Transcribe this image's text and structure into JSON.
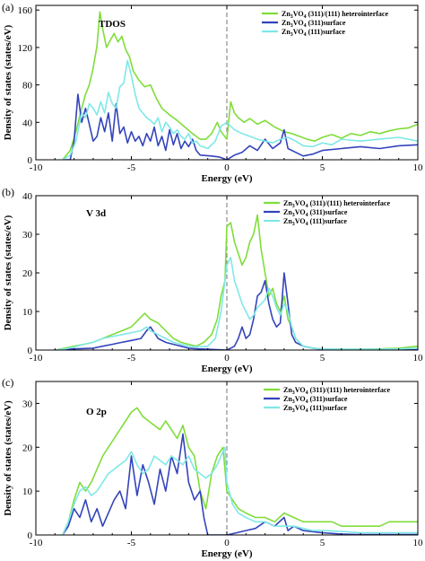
{
  "chart_data": [
    {
      "type": "line",
      "panel_letter": "(a)",
      "title": "TDOS",
      "xlabel": "Energy (eV)",
      "ylabel": "Density of states (states/eV)",
      "xlim": [
        -10,
        10
      ],
      "ylim": [
        0,
        165
      ],
      "xticks": [
        -10,
        -5,
        0,
        5,
        10
      ],
      "yticks": [
        0,
        40,
        80,
        120,
        160
      ],
      "fermi_level": 0,
      "legend_position": "top-right",
      "series": [
        {
          "name": "Zn3VO4 (311)/(111) heterointerface",
          "color": "#7fdd3a",
          "x": [
            -8.6,
            -8.2,
            -7.9,
            -7.6,
            -7.4,
            -7.2,
            -7.0,
            -6.8,
            -6.65,
            -6.5,
            -6.3,
            -6.1,
            -5.9,
            -5.7,
            -5.5,
            -5.3,
            -5.1,
            -4.9,
            -4.6,
            -4.3,
            -4.0,
            -3.7,
            -3.4,
            -3.0,
            -2.6,
            -2.2,
            -1.8,
            -1.4,
            -1.1,
            -0.8,
            -0.5,
            -0.3,
            0,
            0.2,
            0.4,
            0.6,
            0.9,
            1.2,
            1.6,
            2.0,
            2.5,
            3.0,
            3.4,
            3.8,
            4.2,
            4.6,
            5.0,
            5.5,
            6.0,
            6.5,
            7.0,
            7.5,
            8.0,
            8.5,
            9.0,
            9.5,
            10
          ],
          "y": [
            0,
            10,
            30,
            55,
            70,
            80,
            98,
            122,
            158,
            140,
            120,
            128,
            135,
            126,
            132,
            118,
            110,
            95,
            85,
            78,
            80,
            66,
            55,
            48,
            42,
            35,
            28,
            22,
            22,
            28,
            40,
            30,
            22,
            62,
            50,
            45,
            40,
            44,
            38,
            42,
            35,
            30,
            28,
            25,
            22,
            20,
            24,
            27,
            23,
            28,
            26,
            30,
            28,
            31,
            33,
            34,
            38
          ]
        },
        {
          "name": "Zn3VO4 (311)surface",
          "color": "#3344bb",
          "x": [
            -8.6,
            -8.2,
            -8.0,
            -7.8,
            -7.6,
            -7.4,
            -7.2,
            -7.0,
            -6.8,
            -6.6,
            -6.4,
            -6.2,
            -6.0,
            -5.8,
            -5.6,
            -5.4,
            -5.2,
            -5.0,
            -4.8,
            -4.6,
            -4.4,
            -4.2,
            -4.0,
            -3.8,
            -3.6,
            -3.4,
            -3.2,
            -3.0,
            -2.8,
            -2.6,
            -2.4,
            -2.2,
            -2.0,
            -1.8,
            -1.6,
            -1.4,
            -0.8,
            -0.4,
            0,
            0.4,
            0.8,
            1.2,
            1.6,
            2.0,
            2.4,
            2.8,
            3.0,
            3.2,
            3.6,
            4.0,
            4.5,
            5.0,
            6.0,
            7.0,
            8.0,
            9.0,
            10
          ],
          "y": [
            0,
            0,
            20,
            70,
            40,
            55,
            38,
            20,
            25,
            45,
            30,
            50,
            20,
            60,
            28,
            35,
            18,
            30,
            20,
            25,
            15,
            28,
            20,
            35,
            15,
            25,
            10,
            32,
            16,
            28,
            12,
            20,
            14,
            22,
            10,
            5,
            4,
            3,
            0,
            5,
            8,
            15,
            10,
            22,
            12,
            18,
            32,
            12,
            8,
            4,
            6,
            10,
            12,
            14,
            12,
            15,
            16
          ]
        },
        {
          "name": "Zn3VO4 (111)surface",
          "color": "#7fe8e8",
          "x": [
            -8.6,
            -8.2,
            -7.9,
            -7.6,
            -7.4,
            -7.2,
            -7.0,
            -6.8,
            -6.6,
            -6.4,
            -6.2,
            -6.0,
            -5.8,
            -5.6,
            -5.4,
            -5.2,
            -5.0,
            -4.8,
            -4.6,
            -4.4,
            -4.2,
            -4.0,
            -3.8,
            -3.6,
            -3.4,
            -3.2,
            -3.0,
            -2.8,
            -2.6,
            -2.4,
            -2.2,
            -2.0,
            -1.8,
            -1.6,
            -1.4,
            -1.0,
            -0.6,
            -0.3,
            0,
            0.4,
            0.8,
            1.2,
            1.6,
            2.0,
            2.4,
            2.8,
            3.2,
            3.6,
            4.0,
            4.5,
            5.0,
            5.5,
            6.0,
            7.0,
            8.0,
            9.0,
            10
          ],
          "y": [
            0,
            5,
            20,
            50,
            45,
            60,
            55,
            48,
            62,
            50,
            72,
            60,
            55,
            78,
            82,
            106,
            90,
            70,
            55,
            50,
            45,
            42,
            38,
            45,
            30,
            40,
            35,
            28,
            32,
            25,
            22,
            28,
            18,
            20,
            15,
            12,
            20,
            36,
            40,
            32,
            28,
            25,
            22,
            20,
            18,
            22,
            24,
            20,
            15,
            14,
            18,
            16,
            22,
            20,
            22,
            24,
            20
          ]
        }
      ]
    },
    {
      "type": "line",
      "panel_letter": "(b)",
      "title": "V 3d",
      "xlabel": "Energy (eV)",
      "ylabel": "Density of states (states/eV)",
      "xlim": [
        -10,
        10
      ],
      "ylim": [
        0,
        40
      ],
      "xticks": [
        -10,
        -5,
        0,
        5,
        10
      ],
      "yticks": [
        0,
        10,
        20,
        30,
        40
      ],
      "fermi_level": 0,
      "legend_position": "top-right",
      "series": [
        {
          "name": "Zn3VO4 (311)/(111) heterointerface",
          "color": "#7fdd3a",
          "x": [
            -9,
            -8.5,
            -8,
            -7.5,
            -7,
            -6.5,
            -6,
            -5.5,
            -5,
            -4.6,
            -4.3,
            -4.0,
            -3.6,
            -3.2,
            -2.8,
            -2.4,
            -2.0,
            -1.6,
            -1.2,
            -0.8,
            -0.5,
            -0.3,
            -0.1,
            0,
            0.2,
            0.4,
            0.6,
            0.8,
            1.0,
            1.2,
            1.4,
            1.6,
            1.8,
            2.0,
            2.2,
            2.4,
            2.6,
            2.8,
            3.0,
            3.2,
            3.4,
            3.6,
            3.8,
            4.0,
            4.5,
            5.0,
            6.0,
            7.0,
            8.0,
            9.0,
            10
          ],
          "y": [
            0,
            0.5,
            1,
            1.5,
            2,
            3,
            4,
            5,
            6,
            8,
            9.5,
            8,
            7,
            5,
            3,
            2,
            1.5,
            1,
            2,
            4,
            8,
            14,
            18,
            32,
            33,
            28,
            25,
            22,
            24,
            28,
            30,
            35,
            26,
            20,
            14,
            16,
            12,
            10,
            14,
            8,
            6,
            3,
            2,
            1,
            0.5,
            0.3,
            0.2,
            0.2,
            0.3,
            0.5,
            1
          ]
        },
        {
          "name": "Zn3VO4 (311)surface",
          "color": "#3344bb",
          "x": [
            -9,
            -8,
            -7,
            -6.5,
            -6,
            -5.5,
            -5,
            -4.5,
            -4.2,
            -4.0,
            -3.6,
            -3.2,
            -2.8,
            -2.4,
            -2.0,
            -1.5,
            -1,
            -0.5,
            0,
            0.2,
            0.4,
            0.6,
            0.8,
            1.0,
            1.2,
            1.4,
            1.6,
            1.8,
            2.0,
            2.2,
            2.4,
            2.6,
            2.8,
            3.0,
            3.2,
            3.4,
            3.6,
            4.0,
            4.5,
            5,
            6,
            7,
            8,
            9,
            10
          ],
          "y": [
            0,
            0.3,
            0.5,
            1,
            1.5,
            2,
            2.5,
            3,
            5,
            6,
            3,
            2,
            1.5,
            1,
            0.5,
            0.3,
            0.2,
            0.1,
            0,
            0.5,
            1,
            3,
            6,
            3,
            4,
            8,
            14,
            15,
            18,
            12,
            8,
            6,
            7,
            20,
            12,
            4,
            2,
            1,
            0.5,
            0.2,
            0.1,
            0.1,
            0.1,
            0.1,
            0.1
          ]
        },
        {
          "name": "Zn3VO4 (111)surface",
          "color": "#7fe8e8",
          "x": [
            -9,
            -8.5,
            -8,
            -7.5,
            -7,
            -6.5,
            -6,
            -5.5,
            -5,
            -4.5,
            -4.2,
            -4.0,
            -3.6,
            -3.2,
            -2.8,
            -2.4,
            -2.0,
            -1.5,
            -1,
            -0.6,
            -0.3,
            0,
            0.2,
            0.4,
            0.6,
            0.8,
            1.0,
            1.2,
            1.4,
            1.6,
            1.8,
            2.0,
            2.2,
            2.4,
            2.6,
            2.8,
            3.0,
            3.2,
            3.4,
            3.6,
            3.8,
            4.0,
            4.5,
            5,
            6,
            7,
            8,
            9,
            10
          ],
          "y": [
            0,
            0.3,
            0.8,
            1.5,
            2,
            3,
            3.5,
            4,
            4.5,
            5,
            6,
            5,
            4,
            3,
            2,
            1.5,
            1,
            0.8,
            1,
            3,
            10,
            22,
            24,
            18,
            15,
            12,
            10,
            8,
            9,
            11,
            12,
            13,
            16,
            14,
            11,
            9,
            12,
            10,
            6,
            3,
            2,
            1,
            0.5,
            0.3,
            0.2,
            0.2,
            0.2,
            0.3,
            0.5
          ]
        }
      ]
    },
    {
      "type": "line",
      "panel_letter": "(c)",
      "title": "O 2p",
      "xlabel": "Energy (eV)",
      "ylabel": "Density of states (states/eV)",
      "xlim": [
        -10,
        10
      ],
      "ylim": [
        0,
        35
      ],
      "xticks": [
        -10,
        -5,
        0,
        5,
        10
      ],
      "yticks": [
        0,
        10,
        20,
        30
      ],
      "fermi_level": 0,
      "legend_position": "top-right",
      "series": [
        {
          "name": "Zn3VO4 (311)/(111) heterointerface",
          "color": "#7fdd3a",
          "x": [
            -8.6,
            -8.3,
            -8.0,
            -7.7,
            -7.4,
            -7.1,
            -6.8,
            -6.5,
            -6.2,
            -5.9,
            -5.6,
            -5.3,
            -5.0,
            -4.7,
            -4.4,
            -4.1,
            -3.8,
            -3.5,
            -3.2,
            -2.9,
            -2.6,
            -2.3,
            -2.0,
            -1.7,
            -1.4,
            -1.1,
            -0.8,
            -0.5,
            -0.2,
            0,
            0.3,
            0.6,
            1.0,
            1.5,
            2.0,
            2.5,
            3.0,
            3.5,
            4.0,
            4.5,
            5.0,
            5.5,
            6.0,
            6.5,
            7.0,
            7.5,
            8.0,
            8.5,
            9.0,
            9.5,
            10
          ],
          "y": [
            0,
            3,
            8,
            12,
            10,
            12,
            15,
            18,
            20,
            22,
            24,
            26,
            28,
            29,
            27,
            26,
            25,
            24,
            26,
            24,
            22,
            25,
            20,
            18,
            10,
            6,
            14,
            18,
            20,
            10,
            8,
            6,
            5,
            4,
            4,
            3,
            5,
            4,
            3,
            3,
            3,
            3,
            2,
            2,
            2,
            2,
            2,
            3,
            3,
            3,
            3
          ]
        },
        {
          "name": "Zn3VO4 (311)surface",
          "color": "#3344bb",
          "x": [
            -8.6,
            -8.3,
            -8.0,
            -7.7,
            -7.4,
            -7.1,
            -6.8,
            -6.5,
            -6.2,
            -5.9,
            -5.6,
            -5.3,
            -5.0,
            -4.7,
            -4.4,
            -4.1,
            -3.8,
            -3.5,
            -3.2,
            -2.9,
            -2.6,
            -2.3,
            -2.0,
            -1.7,
            -1.4,
            -1.2,
            -1.0,
            -0.5,
            0,
            0.5,
            1,
            1.5,
            2,
            2.5,
            3.0,
            3.2,
            3.5,
            4,
            5,
            6,
            7,
            8,
            9,
            10
          ],
          "y": [
            0,
            2,
            6,
            4,
            8,
            3,
            6,
            2,
            5,
            8,
            10,
            6,
            18,
            9,
            16,
            12,
            7,
            15,
            10,
            18,
            14,
            23,
            12,
            8,
            10,
            4,
            0,
            0,
            0,
            0.5,
            1,
            1.5,
            3,
            2,
            4,
            1,
            2,
            1,
            0.5,
            0.2,
            0.1,
            0.1,
            0.1,
            0.1
          ]
        },
        {
          "name": "Zn3VO4 (111)surface",
          "color": "#7fe8e8",
          "x": [
            -8.6,
            -8.3,
            -8.0,
            -7.7,
            -7.4,
            -7.1,
            -6.8,
            -6.5,
            -6.2,
            -5.9,
            -5.6,
            -5.3,
            -5.0,
            -4.7,
            -4.4,
            -4.1,
            -3.8,
            -3.5,
            -3.2,
            -2.9,
            -2.6,
            -2.3,
            -2.0,
            -1.7,
            -1.4,
            -1.1,
            -0.8,
            -0.5,
            -0.3,
            -0.1,
            0,
            0.3,
            0.6,
            1.0,
            1.5,
            2.0,
            2.5,
            3.0,
            3.5,
            4.0,
            4.5,
            5,
            6,
            7,
            8,
            9,
            10
          ],
          "y": [
            0,
            3,
            7,
            10,
            11,
            9,
            10,
            12,
            14,
            15,
            16,
            17,
            19,
            16,
            14,
            15,
            18,
            17,
            16,
            18,
            17,
            16,
            18,
            15,
            14,
            13,
            14,
            16,
            18,
            20,
            12,
            7,
            5,
            4,
            3,
            3,
            2,
            2,
            2,
            1.5,
            1,
            1,
            0.8,
            0.5,
            0.5,
            0.5,
            0.5
          ]
        }
      ]
    }
  ],
  "legend_labels": {
    "hetero_base": "Zn",
    "hetero_sub1": "3",
    "hetero_mid": "VO",
    "hetero_sub2": "4",
    "hetero_rest": " (311)/(111) heterointerface",
    "s311_rest": " (311)surface",
    "s111_rest": " (111)surface"
  }
}
